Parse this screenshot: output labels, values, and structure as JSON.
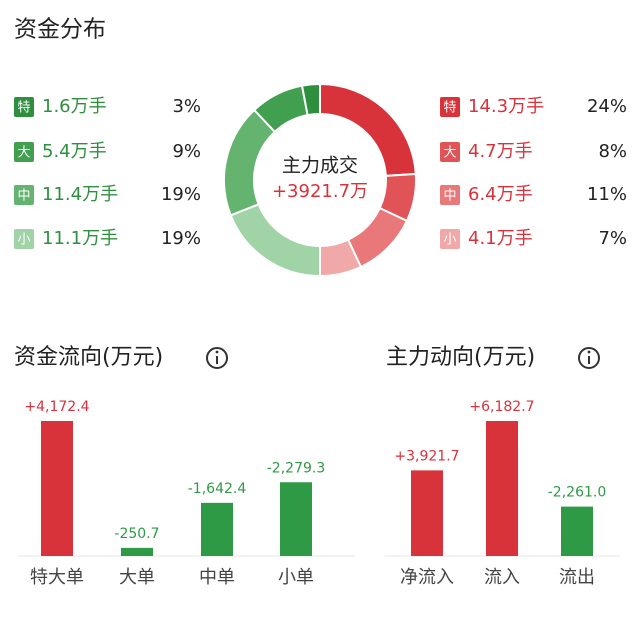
{
  "chart_data": [
    {
      "type": "donut",
      "title": "资金分布",
      "center_title": "主力成交",
      "center_value": "+3921.7万",
      "categories": [
        "特",
        "大",
        "中",
        "小"
      ],
      "series": [
        {
          "side": "right",
          "colors": [
            "#d8323a",
            "#e05357",
            "#e8787a",
            "#f0a8a8"
          ],
          "text_color": "#d8323a",
          "values": [
            24,
            8,
            11,
            7
          ],
          "value_labels": [
            "24%",
            "8%",
            "11%",
            "7%"
          ],
          "volume_labels": [
            "14.3万手",
            "4.7万手",
            "6.4万手",
            "4.1万手"
          ]
        },
        {
          "side": "left",
          "colors": [
            "#2e8f3e",
            "#40a04f",
            "#64b46f",
            "#a0d3a5"
          ],
          "text_color": "#2e8f3e",
          "values": [
            3,
            9,
            19,
            19
          ],
          "value_labels": [
            "3%",
            "9%",
            "19%",
            "19%"
          ],
          "volume_labels": [
            "1.6万手",
            "5.4万手",
            "11.4万手",
            "11.1万手"
          ]
        }
      ]
    },
    {
      "type": "bar",
      "title": "资金流向(万元)",
      "categories": [
        "特大单",
        "大单",
        "中单",
        "小单"
      ],
      "values": [
        4172.4,
        -250.7,
        -1642.4,
        -2279.3
      ],
      "value_labels": [
        "+4,172.4",
        "-250.7",
        "-1,642.4",
        "-2,279.3"
      ],
      "colors": [
        "#d8323a",
        "#2e9a45",
        "#2e9a45",
        "#2e9a45"
      ]
    },
    {
      "type": "bar",
      "title": "主力动向(万元)",
      "categories": [
        "净流入",
        "流入",
        "流出"
      ],
      "values": [
        3921.7,
        6182.7,
        -2261.0
      ],
      "value_labels": [
        "+3,921.7",
        "+6,182.7",
        "-2,261.0"
      ],
      "colors": [
        "#d8323a",
        "#d8323a",
        "#2e9a45"
      ]
    }
  ]
}
